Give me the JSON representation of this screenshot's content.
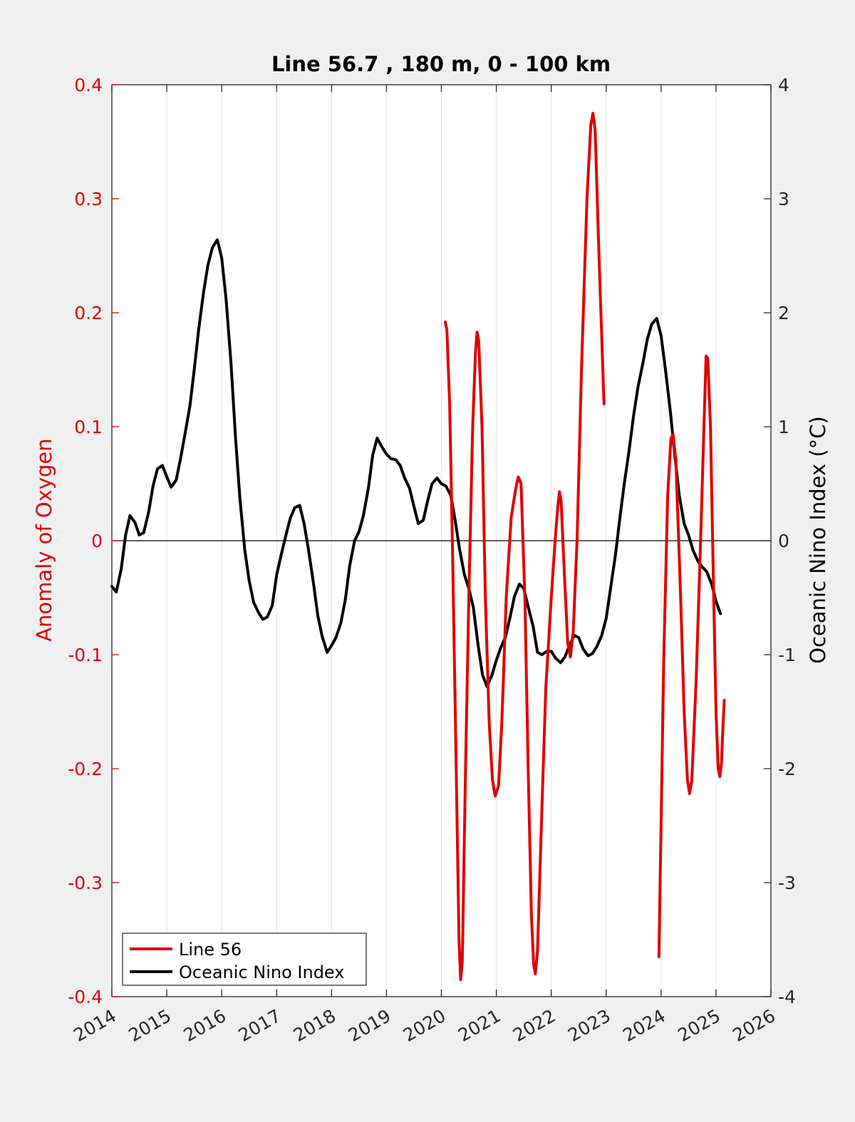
{
  "chart_data": {
    "type": "line",
    "title": "Line 56.7 , 180 m, 0 - 100 km",
    "xlabel": "",
    "ylabel_left": "Anomaly of Oxygen",
    "ylabel_right": "Oceanic Nino Index (°C)",
    "xlim": [
      2014,
      2026
    ],
    "ylim_left": [
      -0.4,
      0.4
    ],
    "ylim_right": [
      -4,
      4
    ],
    "x_ticks": [
      "2014",
      "2015",
      "2016",
      "2017",
      "2018",
      "2019",
      "2020",
      "2021",
      "2022",
      "2023",
      "2024",
      "2025",
      "2026"
    ],
    "y_ticks_left": [
      "-0.4",
      "-0.3",
      "-0.2",
      "-0.1",
      "0",
      "0.1",
      "0.2",
      "0.3",
      "0.4"
    ],
    "y_ticks_right": [
      "-4",
      "-3",
      "-2",
      "-1",
      "0",
      "1",
      "2",
      "3",
      "4"
    ],
    "grid": "vertical",
    "zero_line": true,
    "legend_position": "bottom-left",
    "colors": {
      "line56": "#e00000",
      "oni": "#000000",
      "left_axis": "#e00000",
      "right_axis": "#000000"
    },
    "series": [
      {
        "name": "Line 56",
        "axis": "left",
        "color": "#e00000",
        "segments": [
          [
            [
              2020.07,
              0.192
            ],
            [
              2020.1,
              0.185
            ],
            [
              2020.15,
              0.12
            ],
            [
              2020.2,
              0.0
            ],
            [
              2020.27,
              -0.2
            ],
            [
              2020.32,
              -0.35
            ],
            [
              2020.35,
              -0.385
            ],
            [
              2020.38,
              -0.37
            ],
            [
              2020.44,
              -0.2
            ],
            [
              2020.5,
              -0.05
            ],
            [
              2020.57,
              0.1
            ],
            [
              2020.62,
              0.165
            ],
            [
              2020.65,
              0.183
            ],
            [
              2020.68,
              0.175
            ],
            [
              2020.74,
              0.1
            ],
            [
              2020.8,
              -0.05
            ],
            [
              2020.87,
              -0.16
            ],
            [
              2020.93,
              -0.21
            ],
            [
              2020.98,
              -0.224
            ],
            [
              2021.04,
              -0.215
            ],
            [
              2021.1,
              -0.16
            ],
            [
              2021.18,
              -0.05
            ],
            [
              2021.27,
              0.02
            ],
            [
              2021.35,
              0.045
            ],
            [
              2021.4,
              0.056
            ],
            [
              2021.45,
              0.05
            ],
            [
              2021.52,
              -0.05
            ],
            [
              2021.58,
              -0.2
            ],
            [
              2021.64,
              -0.33
            ],
            [
              2021.68,
              -0.372
            ],
            [
              2021.71,
              -0.38
            ],
            [
              2021.75,
              -0.36
            ],
            [
              2021.82,
              -0.25
            ],
            [
              2021.9,
              -0.13
            ],
            [
              2022.0,
              -0.05
            ],
            [
              2022.07,
              0.0
            ],
            [
              2022.12,
              0.03
            ],
            [
              2022.15,
              0.043
            ],
            [
              2022.18,
              0.035
            ],
            [
              2022.24,
              -0.03
            ],
            [
              2022.3,
              -0.09
            ],
            [
              2022.35,
              -0.102
            ],
            [
              2022.4,
              -0.08
            ],
            [
              2022.47,
              0.0
            ],
            [
              2022.55,
              0.15
            ],
            [
              2022.65,
              0.3
            ],
            [
              2022.72,
              0.365
            ],
            [
              2022.76,
              0.375
            ],
            [
              2022.8,
              0.36
            ],
            [
              2022.87,
              0.25
            ],
            [
              2022.94,
              0.15
            ],
            [
              2022.96,
              0.12
            ]
          ],
          [
            [
              2023.96,
              -0.365
            ],
            [
              2024.0,
              -0.25
            ],
            [
              2024.05,
              -0.1
            ],
            [
              2024.12,
              0.04
            ],
            [
              2024.18,
              0.09
            ],
            [
              2024.22,
              0.093
            ],
            [
              2024.27,
              0.07
            ],
            [
              2024.35,
              -0.04
            ],
            [
              2024.42,
              -0.15
            ],
            [
              2024.48,
              -0.21
            ],
            [
              2024.52,
              -0.222
            ],
            [
              2024.56,
              -0.21
            ],
            [
              2024.64,
              -0.12
            ],
            [
              2024.72,
              0.0
            ],
            [
              2024.78,
              0.1
            ],
            [
              2024.82,
              0.162
            ],
            [
              2024.85,
              0.16
            ],
            [
              2024.9,
              0.1
            ],
            [
              2024.95,
              -0.03
            ],
            [
              2025.0,
              -0.15
            ],
            [
              2025.04,
              -0.2
            ],
            [
              2025.07,
              -0.207
            ],
            [
              2025.1,
              -0.195
            ],
            [
              2025.13,
              -0.16
            ],
            [
              2025.15,
              -0.14
            ]
          ]
        ]
      },
      {
        "name": "Oceanic Nino Index",
        "axis": "right",
        "color": "#000000",
        "points": [
          [
            2014.0,
            -0.4
          ],
          [
            2014.08,
            -0.45
          ],
          [
            2014.17,
            -0.25
          ],
          [
            2014.25,
            0.05
          ],
          [
            2014.33,
            0.22
          ],
          [
            2014.42,
            0.16
          ],
          [
            2014.5,
            0.05
          ],
          [
            2014.58,
            0.07
          ],
          [
            2014.67,
            0.25
          ],
          [
            2014.75,
            0.48
          ],
          [
            2014.83,
            0.63
          ],
          [
            2014.92,
            0.66
          ],
          [
            2015.0,
            0.56
          ],
          [
            2015.08,
            0.47
          ],
          [
            2015.17,
            0.53
          ],
          [
            2015.25,
            0.72
          ],
          [
            2015.33,
            0.93
          ],
          [
            2015.42,
            1.18
          ],
          [
            2015.5,
            1.5
          ],
          [
            2015.58,
            1.85
          ],
          [
            2015.67,
            2.18
          ],
          [
            2015.75,
            2.42
          ],
          [
            2015.83,
            2.57
          ],
          [
            2015.92,
            2.64
          ],
          [
            2016.0,
            2.48
          ],
          [
            2016.08,
            2.12
          ],
          [
            2016.17,
            1.55
          ],
          [
            2016.25,
            0.92
          ],
          [
            2016.33,
            0.38
          ],
          [
            2016.42,
            -0.08
          ],
          [
            2016.5,
            -0.35
          ],
          [
            2016.58,
            -0.54
          ],
          [
            2016.67,
            -0.63
          ],
          [
            2016.75,
            -0.69
          ],
          [
            2016.83,
            -0.67
          ],
          [
            2016.92,
            -0.57
          ],
          [
            2017.0,
            -0.3
          ],
          [
            2017.08,
            -0.13
          ],
          [
            2017.17,
            0.05
          ],
          [
            2017.25,
            0.2
          ],
          [
            2017.33,
            0.29
          ],
          [
            2017.42,
            0.31
          ],
          [
            2017.5,
            0.15
          ],
          [
            2017.58,
            -0.08
          ],
          [
            2017.67,
            -0.37
          ],
          [
            2017.75,
            -0.66
          ],
          [
            2017.83,
            -0.84
          ],
          [
            2017.92,
            -0.98
          ],
          [
            2018.0,
            -0.92
          ],
          [
            2018.08,
            -0.85
          ],
          [
            2018.17,
            -0.72
          ],
          [
            2018.25,
            -0.52
          ],
          [
            2018.33,
            -0.22
          ],
          [
            2018.42,
            0.0
          ],
          [
            2018.5,
            0.08
          ],
          [
            2018.58,
            0.22
          ],
          [
            2018.67,
            0.46
          ],
          [
            2018.75,
            0.75
          ],
          [
            2018.83,
            0.9
          ],
          [
            2018.92,
            0.82
          ],
          [
            2019.0,
            0.76
          ],
          [
            2019.08,
            0.72
          ],
          [
            2019.17,
            0.71
          ],
          [
            2019.25,
            0.66
          ],
          [
            2019.33,
            0.55
          ],
          [
            2019.42,
            0.46
          ],
          [
            2019.5,
            0.3
          ],
          [
            2019.58,
            0.15
          ],
          [
            2019.67,
            0.18
          ],
          [
            2019.75,
            0.35
          ],
          [
            2019.83,
            0.5
          ],
          [
            2019.92,
            0.55
          ],
          [
            2020.0,
            0.5
          ],
          [
            2020.08,
            0.48
          ],
          [
            2020.17,
            0.4
          ],
          [
            2020.25,
            0.18
          ],
          [
            2020.33,
            -0.07
          ],
          [
            2020.42,
            -0.3
          ],
          [
            2020.5,
            -0.42
          ],
          [
            2020.58,
            -0.58
          ],
          [
            2020.67,
            -0.92
          ],
          [
            2020.75,
            -1.18
          ],
          [
            2020.83,
            -1.28
          ],
          [
            2020.92,
            -1.18
          ],
          [
            2021.0,
            -1.05
          ],
          [
            2021.08,
            -0.94
          ],
          [
            2021.17,
            -0.84
          ],
          [
            2021.25,
            -0.67
          ],
          [
            2021.33,
            -0.49
          ],
          [
            2021.42,
            -0.38
          ],
          [
            2021.5,
            -0.42
          ],
          [
            2021.58,
            -0.58
          ],
          [
            2021.67,
            -0.75
          ],
          [
            2021.75,
            -0.98
          ],
          [
            2021.83,
            -1.0
          ],
          [
            2021.92,
            -0.97
          ],
          [
            2022.0,
            -0.97
          ],
          [
            2022.08,
            -1.03
          ],
          [
            2022.17,
            -1.07
          ],
          [
            2022.25,
            -1.02
          ],
          [
            2022.33,
            -0.92
          ],
          [
            2022.42,
            -0.83
          ],
          [
            2022.5,
            -0.85
          ],
          [
            2022.58,
            -0.95
          ],
          [
            2022.67,
            -1.01
          ],
          [
            2022.75,
            -0.99
          ],
          [
            2022.83,
            -0.93
          ],
          [
            2022.92,
            -0.83
          ],
          [
            2023.0,
            -0.68
          ],
          [
            2023.08,
            -0.42
          ],
          [
            2023.17,
            -0.12
          ],
          [
            2023.25,
            0.2
          ],
          [
            2023.33,
            0.5
          ],
          [
            2023.42,
            0.8
          ],
          [
            2023.5,
            1.1
          ],
          [
            2023.58,
            1.35
          ],
          [
            2023.67,
            1.56
          ],
          [
            2023.75,
            1.77
          ],
          [
            2023.83,
            1.9
          ],
          [
            2023.92,
            1.95
          ],
          [
            2024.0,
            1.8
          ],
          [
            2024.08,
            1.5
          ],
          [
            2024.17,
            1.13
          ],
          [
            2024.25,
            0.75
          ],
          [
            2024.33,
            0.4
          ],
          [
            2024.42,
            0.15
          ],
          [
            2024.5,
            0.05
          ],
          [
            2024.58,
            -0.08
          ],
          [
            2024.67,
            -0.18
          ],
          [
            2024.75,
            -0.23
          ],
          [
            2024.83,
            -0.27
          ],
          [
            2024.92,
            -0.38
          ],
          [
            2025.0,
            -0.53
          ],
          [
            2025.08,
            -0.64
          ]
        ]
      }
    ]
  }
}
